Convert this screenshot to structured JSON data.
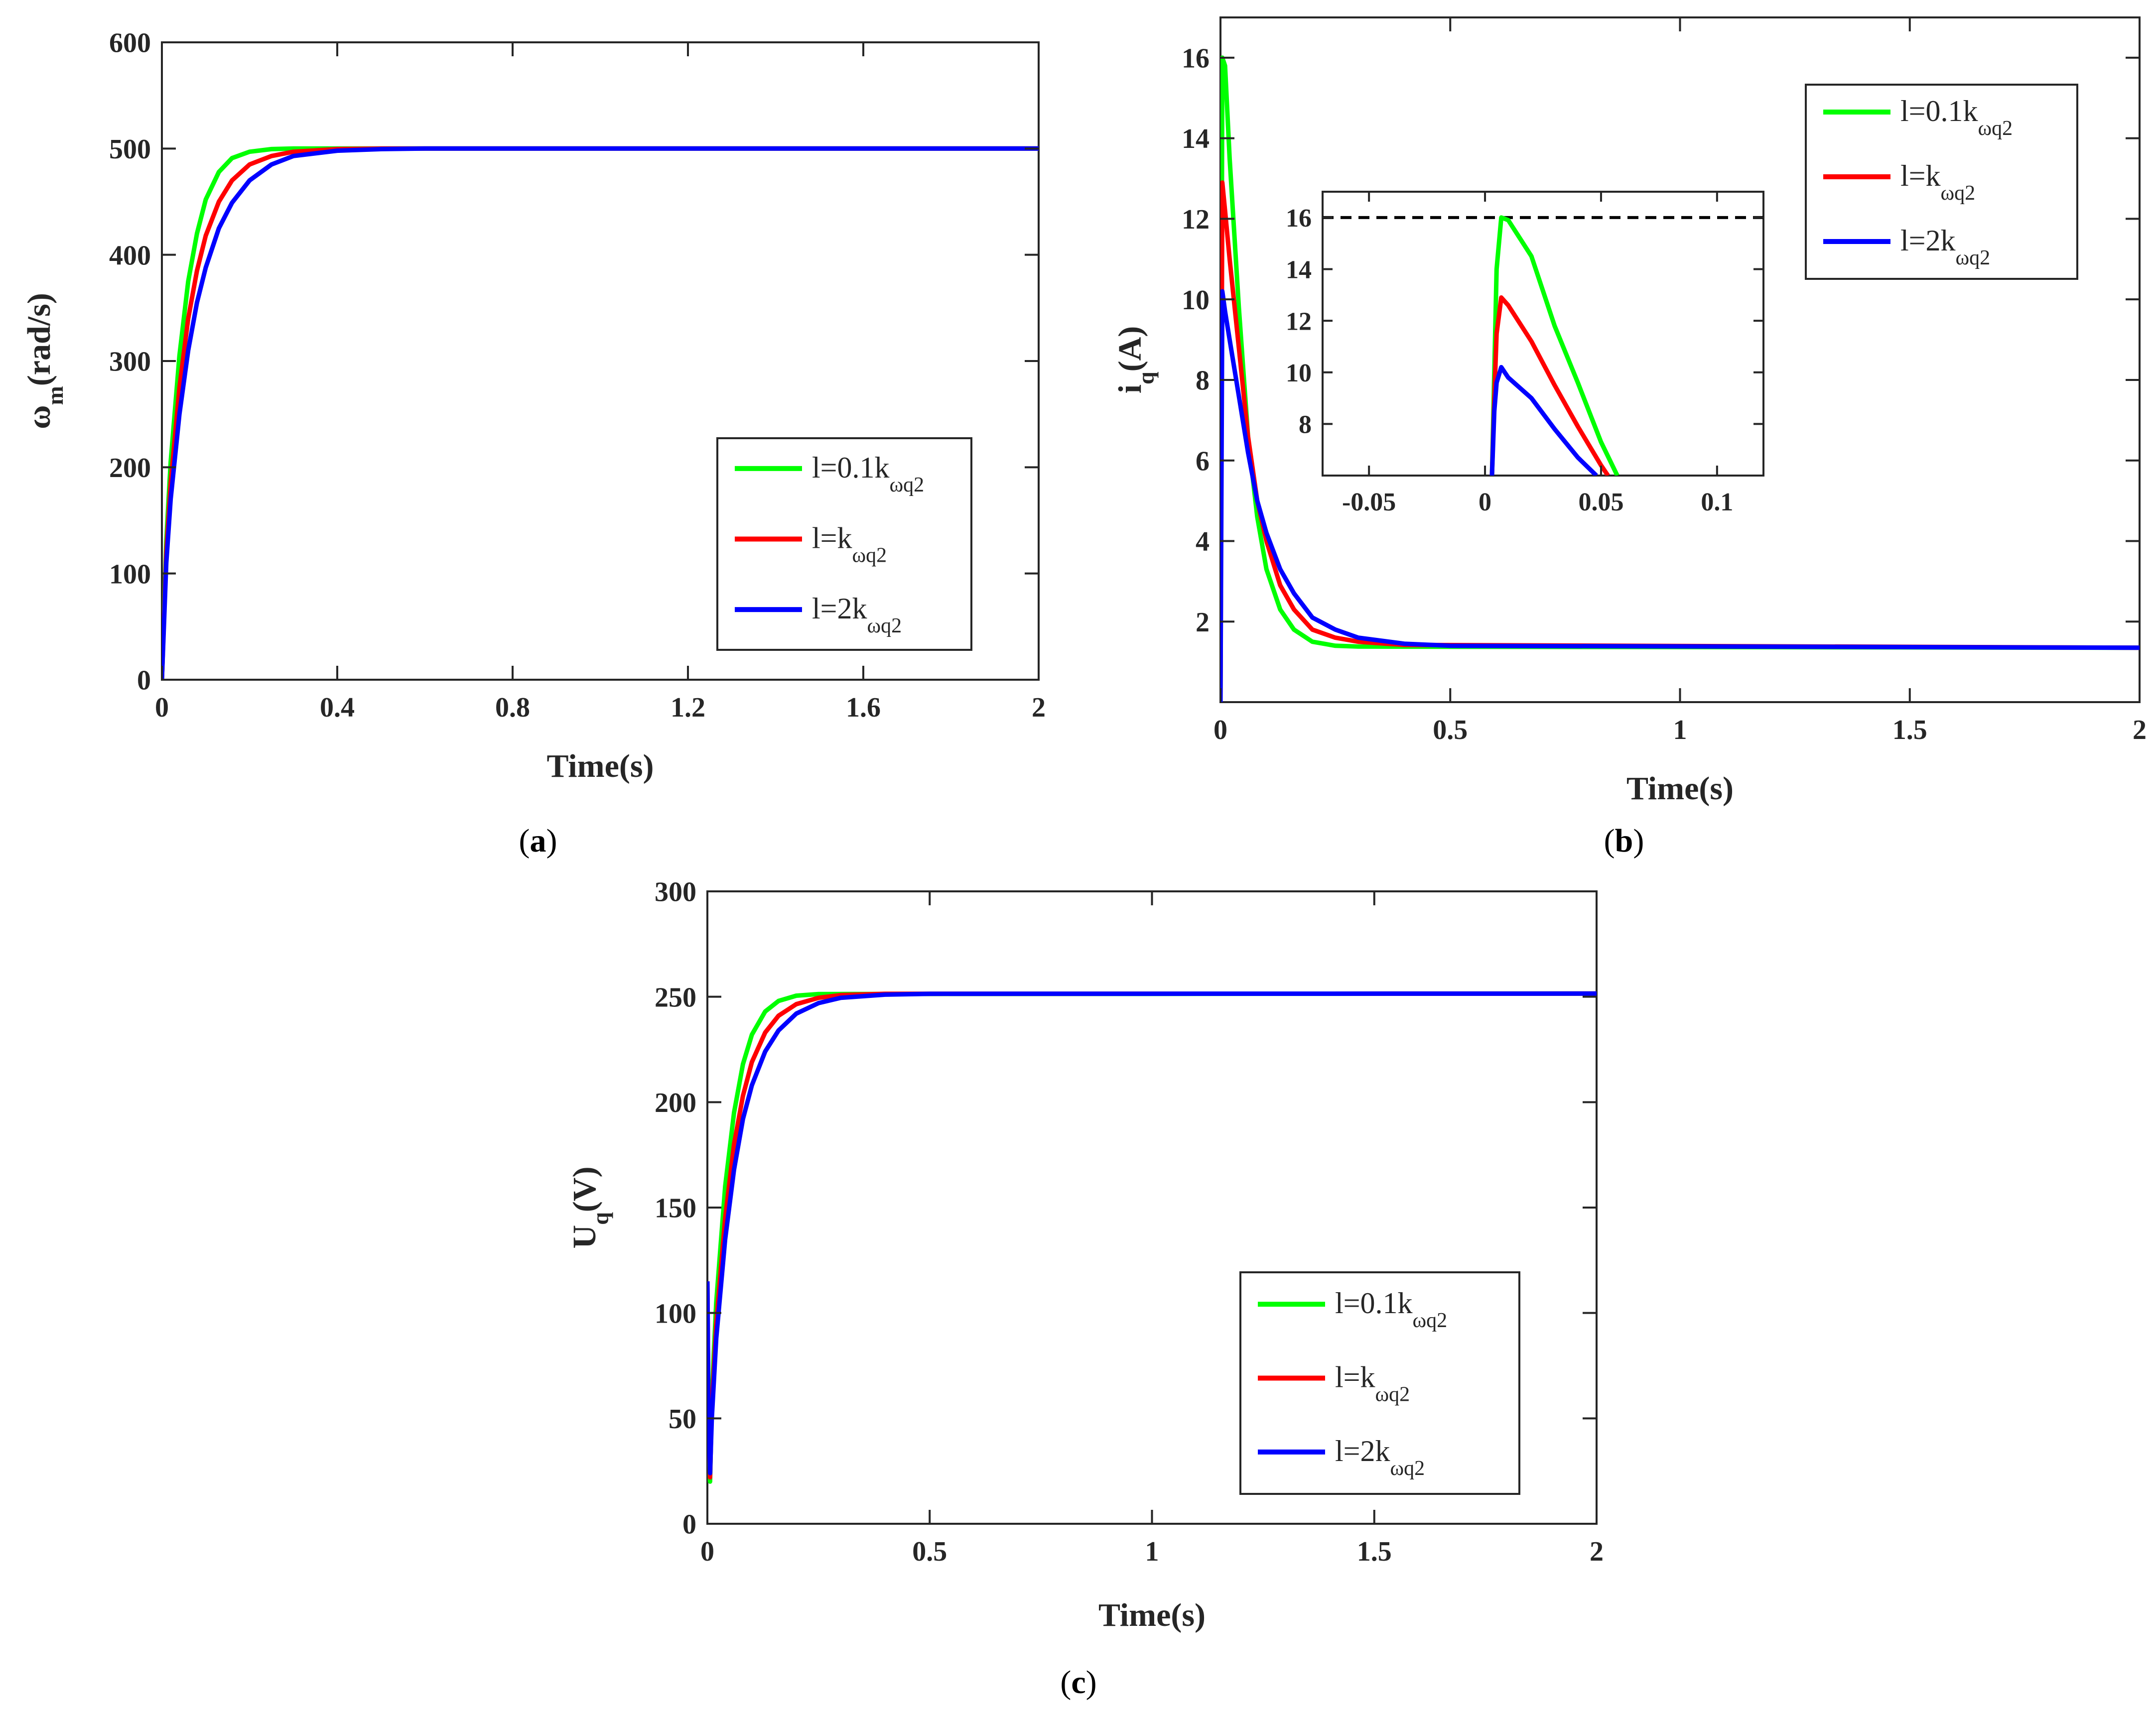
{
  "colors": {
    "green": "#00ff00",
    "red": "#ff0000",
    "blue": "#0000ff",
    "axis": "#262626",
    "dashed": "#000000"
  },
  "legend": {
    "entries": [
      {
        "main": "l=0.1k",
        "sub": "ωq2",
        "color": "#00ff00"
      },
      {
        "main": "l=k",
        "sub": "ωq2",
        "color": "#ff0000"
      },
      {
        "main": "l=2k",
        "sub": "ωq2",
        "color": "#0000ff"
      }
    ]
  },
  "chart_data": [
    {
      "id": "a",
      "type": "line",
      "caption": {
        "open": "(",
        "letter": "a",
        "close": ")"
      },
      "xlabel": "Time(s)",
      "ylabel": {
        "main": "ω",
        "sub": "m",
        "unit": "(rad/s)"
      },
      "xlim": [
        0,
        2
      ],
      "ylim": [
        0,
        600
      ],
      "xticks": [
        0,
        0.4,
        0.8,
        1.2,
        1.6,
        2
      ],
      "xtick_labels": [
        "0",
        "0.4",
        "0.8",
        "1.2",
        "1.6",
        "2"
      ],
      "yticks": [
        0,
        100,
        200,
        300,
        400,
        500,
        600
      ],
      "ytick_labels": [
        "0",
        "100",
        "200",
        "300",
        "400",
        "500",
        "600"
      ],
      "series": [
        {
          "name": "l=0.1kωq2",
          "color": "#00ff00",
          "points": [
            [
              0,
              0
            ],
            [
              0.01,
              130
            ],
            [
              0.02,
              205
            ],
            [
              0.04,
              305
            ],
            [
              0.06,
              375
            ],
            [
              0.08,
              420
            ],
            [
              0.1,
              452
            ],
            [
              0.13,
              478
            ],
            [
              0.16,
              491
            ],
            [
              0.2,
              497
            ],
            [
              0.25,
              499.5
            ],
            [
              0.3,
              500
            ],
            [
              2,
              500
            ]
          ]
        },
        {
          "name": "l=kωq2",
          "color": "#ff0000",
          "points": [
            [
              0,
              0
            ],
            [
              0.01,
              120
            ],
            [
              0.02,
              185
            ],
            [
              0.04,
              275
            ],
            [
              0.06,
              340
            ],
            [
              0.08,
              385
            ],
            [
              0.1,
              418
            ],
            [
              0.13,
              450
            ],
            [
              0.16,
              470
            ],
            [
              0.2,
              485
            ],
            [
              0.25,
              493
            ],
            [
              0.3,
              497
            ],
            [
              0.4,
              499.5
            ],
            [
              0.5,
              500
            ],
            [
              2,
              500
            ]
          ]
        },
        {
          "name": "l=2kωq2",
          "color": "#0000ff",
          "points": [
            [
              0,
              0
            ],
            [
              0.01,
              110
            ],
            [
              0.02,
              170
            ],
            [
              0.04,
              250
            ],
            [
              0.06,
              310
            ],
            [
              0.08,
              355
            ],
            [
              0.1,
              388
            ],
            [
              0.13,
              425
            ],
            [
              0.16,
              449
            ],
            [
              0.2,
              470
            ],
            [
              0.25,
              485
            ],
            [
              0.3,
              493
            ],
            [
              0.4,
              498
            ],
            [
              0.5,
              499.5
            ],
            [
              0.6,
              500
            ],
            [
              2,
              500
            ]
          ]
        }
      ]
    },
    {
      "id": "b",
      "type": "line",
      "caption": {
        "open": "(",
        "letter": "b",
        "close": ")"
      },
      "xlabel": "Time(s)",
      "ylabel": {
        "main": "i",
        "sub": "q",
        "unit": "(A)"
      },
      "xlim": [
        0,
        2
      ],
      "ylim": [
        0,
        17
      ],
      "xticks": [
        0,
        0.5,
        1,
        1.5,
        2
      ],
      "xtick_labels": [
        "0",
        "0.5",
        "1",
        "1.5",
        "2"
      ],
      "yticks": [
        2,
        4,
        6,
        8,
        10,
        12,
        14,
        16
      ],
      "ytick_labels": [
        "2",
        "4",
        "6",
        "8",
        "10",
        "12",
        "14",
        "16"
      ],
      "series": [
        {
          "name": "l=0.1kωq2",
          "color": "#00ff00",
          "points": [
            [
              0,
              0
            ],
            [
              0.004,
              16
            ],
            [
              0.01,
              15.8
            ],
            [
              0.02,
              13.5
            ],
            [
              0.04,
              9.8
            ],
            [
              0.06,
              6.6
            ],
            [
              0.08,
              4.6
            ],
            [
              0.1,
              3.3
            ],
            [
              0.13,
              2.3
            ],
            [
              0.16,
              1.8
            ],
            [
              0.2,
              1.5
            ],
            [
              0.25,
              1.4
            ],
            [
              0.3,
              1.38
            ],
            [
              2,
              1.35
            ]
          ]
        },
        {
          "name": "l=kωq2",
          "color": "#ff0000",
          "points": [
            [
              0,
              0
            ],
            [
              0.004,
              12.9
            ],
            [
              0.01,
              12.2
            ],
            [
              0.02,
              11.0
            ],
            [
              0.04,
              8.8
            ],
            [
              0.06,
              6.6
            ],
            [
              0.08,
              5.0
            ],
            [
              0.1,
              4.0
            ],
            [
              0.13,
              2.9
            ],
            [
              0.16,
              2.3
            ],
            [
              0.2,
              1.8
            ],
            [
              0.25,
              1.6
            ],
            [
              0.3,
              1.5
            ],
            [
              0.4,
              1.42
            ],
            [
              2,
              1.35
            ]
          ]
        },
        {
          "name": "l=2kωq2",
          "color": "#0000ff",
          "points": [
            [
              0,
              0
            ],
            [
              0.004,
              10.2
            ],
            [
              0.01,
              9.7
            ],
            [
              0.02,
              9.0
            ],
            [
              0.04,
              7.6
            ],
            [
              0.06,
              6.2
            ],
            [
              0.08,
              5.0
            ],
            [
              0.1,
              4.2
            ],
            [
              0.13,
              3.3
            ],
            [
              0.16,
              2.7
            ],
            [
              0.2,
              2.1
            ],
            [
              0.25,
              1.8
            ],
            [
              0.3,
              1.6
            ],
            [
              0.4,
              1.45
            ],
            [
              0.5,
              1.4
            ],
            [
              2,
              1.35
            ]
          ]
        }
      ],
      "inset": {
        "xlim": [
          -0.07,
          0.12
        ],
        "ylim": [
          6,
          17
        ],
        "xticks": [
          -0.05,
          0,
          0.05,
          0.1
        ],
        "xtick_labels": [
          "-0.05",
          "0",
          "0.05",
          "0.1"
        ],
        "yticks": [
          8,
          10,
          12,
          14,
          16
        ],
        "ytick_labels": [
          "8",
          "10",
          "12",
          "14",
          "16"
        ],
        "reference_line": 16,
        "series": [
          {
            "name": "l=0.1kωq2",
            "color": "#00ff00",
            "points": [
              [
                0.003,
                6
              ],
              [
                0.004,
                10
              ],
              [
                0.005,
                14
              ],
              [
                0.007,
                16
              ],
              [
                0.01,
                15.9
              ],
              [
                0.02,
                14.5
              ],
              [
                0.03,
                11.8
              ],
              [
                0.04,
                9.6
              ],
              [
                0.05,
                7.3
              ],
              [
                0.057,
                6
              ]
            ]
          },
          {
            "name": "l=kωq2",
            "color": "#ff0000",
            "points": [
              [
                0.003,
                6
              ],
              [
                0.004,
                9
              ],
              [
                0.005,
                11.5
              ],
              [
                0.007,
                12.9
              ],
              [
                0.01,
                12.6
              ],
              [
                0.02,
                11.2
              ],
              [
                0.03,
                9.5
              ],
              [
                0.04,
                7.9
              ],
              [
                0.05,
                6.4
              ],
              [
                0.053,
                6
              ]
            ]
          },
          {
            "name": "l=2kωq2",
            "color": "#0000ff",
            "points": [
              [
                0.003,
                6
              ],
              [
                0.004,
                8.5
              ],
              [
                0.005,
                9.6
              ],
              [
                0.007,
                10.2
              ],
              [
                0.01,
                9.8
              ],
              [
                0.02,
                9.0
              ],
              [
                0.03,
                7.8
              ],
              [
                0.04,
                6.7
              ],
              [
                0.048,
                6
              ]
            ]
          }
        ]
      }
    },
    {
      "id": "c",
      "type": "line",
      "caption": {
        "open": "(",
        "letter": "c",
        "close": ")"
      },
      "xlabel": "Time(s)",
      "ylabel": {
        "main": "U",
        "sub": "q",
        "unit": "(V)"
      },
      "xlim": [
        0,
        2
      ],
      "ylim": [
        0,
        300
      ],
      "xticks": [
        0,
        0.5,
        1,
        1.5,
        2
      ],
      "xtick_labels": [
        "0",
        "0.5",
        "1",
        "1.5",
        "2"
      ],
      "yticks": [
        0,
        50,
        100,
        150,
        200,
        250,
        300
      ],
      "ytick_labels": [
        "0",
        "50",
        "100",
        "150",
        "200",
        "250",
        "300"
      ],
      "series": [
        {
          "name": "l=0.1kωq2",
          "color": "#00ff00",
          "points": [
            [
              0,
              115
            ],
            [
              0.002,
              60
            ],
            [
              0.006,
              20
            ],
            [
              0.01,
              60
            ],
            [
              0.02,
              105
            ],
            [
              0.04,
              160
            ],
            [
              0.06,
              195
            ],
            [
              0.08,
              218
            ],
            [
              0.1,
              232
            ],
            [
              0.13,
              243
            ],
            [
              0.16,
              248
            ],
            [
              0.2,
              250.5
            ],
            [
              0.25,
              251.3
            ],
            [
              2,
              251.5
            ]
          ]
        },
        {
          "name": "l=kωq2",
          "color": "#ff0000",
          "points": [
            [
              0,
              115
            ],
            [
              0.002,
              60
            ],
            [
              0.006,
              22
            ],
            [
              0.01,
              55
            ],
            [
              0.02,
              95
            ],
            [
              0.04,
              145
            ],
            [
              0.06,
              180
            ],
            [
              0.08,
              203
            ],
            [
              0.1,
              219
            ],
            [
              0.13,
              233
            ],
            [
              0.16,
              241
            ],
            [
              0.2,
              246.5
            ],
            [
              0.25,
              249.5
            ],
            [
              0.3,
              250.8
            ],
            [
              0.4,
              251.4
            ],
            [
              2,
              251.5
            ]
          ]
        },
        {
          "name": "l=2kωq2",
          "color": "#0000ff",
          "points": [
            [
              0,
              115
            ],
            [
              0.002,
              60
            ],
            [
              0.006,
              24
            ],
            [
              0.01,
              50
            ],
            [
              0.02,
              88
            ],
            [
              0.04,
              135
            ],
            [
              0.06,
              168
            ],
            [
              0.08,
              192
            ],
            [
              0.1,
              208
            ],
            [
              0.13,
              224
            ],
            [
              0.16,
              234
            ],
            [
              0.2,
              242
            ],
            [
              0.25,
              247
            ],
            [
              0.3,
              249.5
            ],
            [
              0.4,
              251
            ],
            [
              0.5,
              251.4
            ],
            [
              2,
              251.5
            ]
          ]
        }
      ]
    }
  ]
}
